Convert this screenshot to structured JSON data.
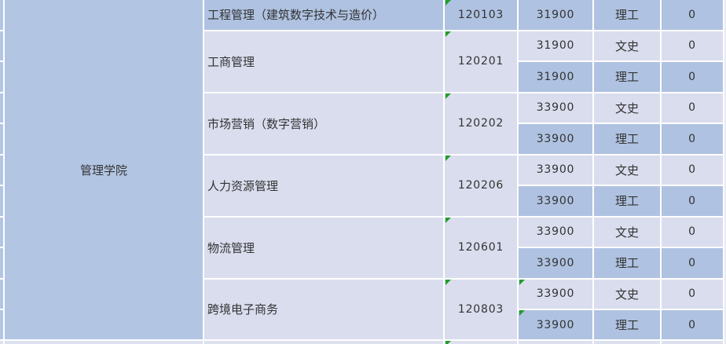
{
  "table": {
    "school": {
      "name": "管理学院"
    },
    "programs": [
      {
        "name": "工程管理（建筑数字技术与造价）",
        "code": "120103",
        "rows": [
          {
            "fee": "31900",
            "type": "理工",
            "count": "0"
          }
        ]
      },
      {
        "name": "工商管理",
        "code": "120201",
        "rows": [
          {
            "fee": "31900",
            "type": "文史",
            "count": "0"
          },
          {
            "fee": "31900",
            "type": "理工",
            "count": "0"
          }
        ]
      },
      {
        "name": "市场营销（数字营销）",
        "code": "120202",
        "rows": [
          {
            "fee": "33900",
            "type": "文史",
            "count": "0"
          },
          {
            "fee": "33900",
            "type": "理工",
            "count": "0"
          }
        ]
      },
      {
        "name": "人力资源管理",
        "code": "120206",
        "rows": [
          {
            "fee": "33900",
            "type": "文史",
            "count": "0"
          },
          {
            "fee": "33900",
            "type": "理工",
            "count": "0"
          }
        ]
      },
      {
        "name": "物流管理",
        "code": "120601",
        "rows": [
          {
            "fee": "33900",
            "type": "文史",
            "count": "0"
          },
          {
            "fee": "33900",
            "type": "理工",
            "count": "0"
          }
        ]
      },
      {
        "name": "跨境电子商务",
        "code": "120803",
        "rows": [
          {
            "fee": "33900",
            "type": "文史",
            "count": "0"
          },
          {
            "fee": "33900",
            "type": "理工",
            "count": "0"
          }
        ]
      }
    ],
    "icons": {
      "comment_indicator": "green-corner-triangle"
    },
    "colors": {
      "school_column": "#b2c6e4",
      "row_dark": "#afc2e1",
      "row_light": "#d9ddee",
      "gridline": "#ffffff",
      "comment_triangle": "#1e9e28",
      "text": "#333333"
    }
  }
}
